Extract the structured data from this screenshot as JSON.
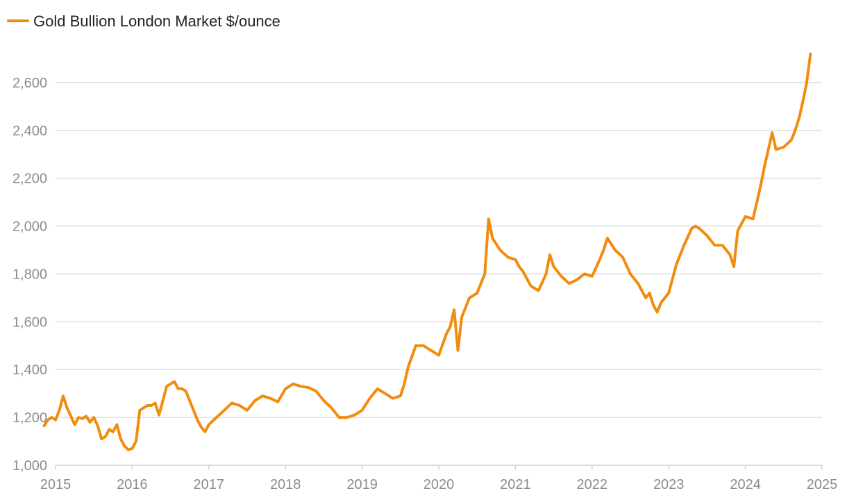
{
  "chart_data": {
    "type": "line",
    "title": "",
    "xlabel": "",
    "ylabel": "",
    "grid": true,
    "legend_position": "top-left",
    "xlim": [
      2015,
      2025
    ],
    "ylim": [
      1000,
      2800
    ],
    "x_ticks": [
      2015,
      2016,
      2017,
      2018,
      2019,
      2020,
      2021,
      2022,
      2023,
      2024,
      2025
    ],
    "x_tick_labels": [
      "2015",
      "2016",
      "2017",
      "2018",
      "2019",
      "2020",
      "2021",
      "2022",
      "2023",
      "2024",
      "2025"
    ],
    "y_ticks": [
      1000,
      1200,
      1400,
      1600,
      1800,
      2000,
      2200,
      2400,
      2600
    ],
    "y_tick_labels": [
      "1,000",
      "1,200",
      "1,400",
      "1,600",
      "1,800",
      "2,000",
      "2,200",
      "2,400",
      "2,600"
    ],
    "colors": {
      "series": "#f28c0f",
      "grid": "#dedede",
      "axis": "#cfcfcf",
      "tick_text": "#8c8c8c",
      "legend_text": "#222222"
    },
    "series": [
      {
        "name": "Gold Bullion London Market $/ounce",
        "x": [
          2014.85,
          2014.9,
          2014.95,
          2015.0,
          2015.05,
          2015.1,
          2015.15,
          2015.2,
          2015.25,
          2015.3,
          2015.35,
          2015.4,
          2015.45,
          2015.5,
          2015.55,
          2015.6,
          2015.65,
          2015.7,
          2015.75,
          2015.8,
          2015.85,
          2015.9,
          2015.95,
          2016.0,
          2016.05,
          2016.1,
          2016.15,
          2016.2,
          2016.25,
          2016.3,
          2016.35,
          2016.4,
          2016.45,
          2016.5,
          2016.55,
          2016.6,
          2016.65,
          2016.7,
          2016.75,
          2016.8,
          2016.85,
          2016.9,
          2016.95,
          2017.0,
          2017.1,
          2017.2,
          2017.3,
          2017.4,
          2017.5,
          2017.6,
          2017.7,
          2017.8,
          2017.9,
          2018.0,
          2018.1,
          2018.2,
          2018.3,
          2018.4,
          2018.5,
          2018.6,
          2018.7,
          2018.8,
          2018.9,
          2019.0,
          2019.1,
          2019.2,
          2019.3,
          2019.4,
          2019.5,
          2019.55,
          2019.6,
          2019.7,
          2019.8,
          2019.9,
          2020.0,
          2020.1,
          2020.15,
          2020.2,
          2020.25,
          2020.3,
          2020.4,
          2020.5,
          2020.6,
          2020.65,
          2020.7,
          2020.8,
          2020.9,
          2021.0,
          2021.05,
          2021.1,
          2021.2,
          2021.3,
          2021.4,
          2021.45,
          2021.5,
          2021.6,
          2021.7,
          2021.8,
          2021.9,
          2022.0,
          2022.1,
          2022.15,
          2022.2,
          2022.3,
          2022.4,
          2022.5,
          2022.55,
          2022.6,
          2022.7,
          2022.75,
          2022.8,
          2022.85,
          2022.9,
          2023.0,
          2023.1,
          2023.2,
          2023.3,
          2023.35,
          2023.4,
          2023.5,
          2023.6,
          2023.7,
          2023.75,
          2023.8,
          2023.85,
          2023.9,
          2024.0,
          2024.1,
          2024.2,
          2024.25,
          2024.3,
          2024.35,
          2024.4,
          2024.5,
          2024.6,
          2024.65,
          2024.7,
          2024.75,
          2024.8,
          2024.85
        ],
        "values": [
          1165,
          1190,
          1200,
          1190,
          1230,
          1290,
          1240,
          1205,
          1170,
          1200,
          1195,
          1205,
          1180,
          1200,
          1165,
          1110,
          1120,
          1150,
          1140,
          1170,
          1110,
          1080,
          1065,
          1070,
          1100,
          1230,
          1240,
          1250,
          1250,
          1260,
          1210,
          1270,
          1330,
          1340,
          1350,
          1320,
          1320,
          1310,
          1270,
          1230,
          1190,
          1160,
          1140,
          1170,
          1200,
          1230,
          1260,
          1250,
          1230,
          1270,
          1290,
          1280,
          1265,
          1320,
          1340,
          1330,
          1325,
          1310,
          1270,
          1240,
          1200,
          1200,
          1210,
          1230,
          1280,
          1320,
          1300,
          1280,
          1290,
          1340,
          1410,
          1500,
          1500,
          1480,
          1460,
          1550,
          1580,
          1650,
          1480,
          1620,
          1700,
          1720,
          1800,
          2030,
          1950,
          1900,
          1870,
          1860,
          1830,
          1810,
          1750,
          1730,
          1800,
          1880,
          1830,
          1790,
          1760,
          1775,
          1800,
          1790,
          1860,
          1900,
          1950,
          1900,
          1870,
          1800,
          1780,
          1760,
          1700,
          1720,
          1670,
          1640,
          1680,
          1720,
          1840,
          1920,
          1990,
          2000,
          1990,
          1960,
          1920,
          1920,
          1900,
          1880,
          1830,
          1980,
          2040,
          2030,
          2170,
          2250,
          2320,
          2390,
          2320,
          2330,
          2360,
          2400,
          2450,
          2520,
          2600,
          2720
        ]
      }
    ]
  }
}
